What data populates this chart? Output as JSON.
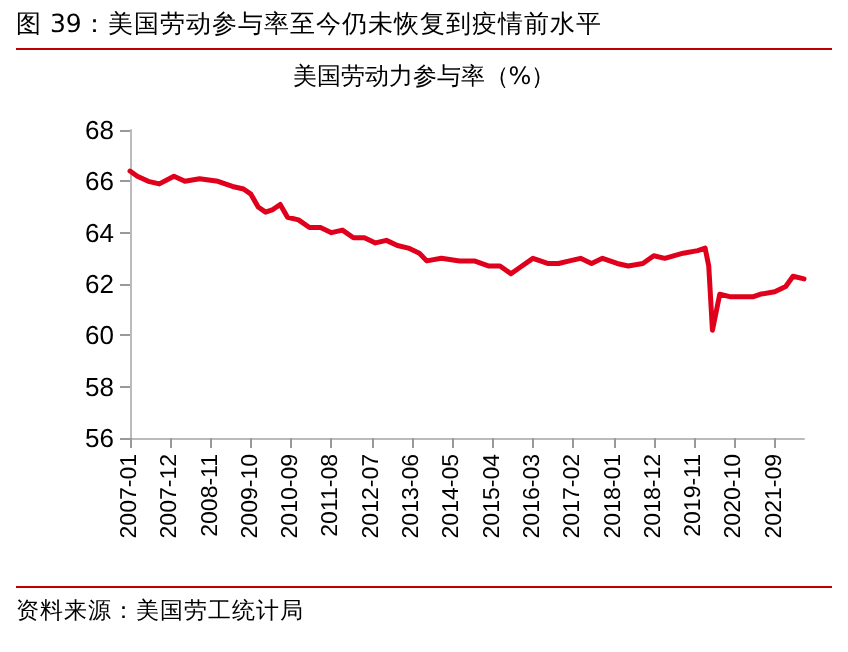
{
  "chart_data": {
    "type": "line",
    "title": "图 39：美国劳动参与率至今仍未恢复到疫情前水平",
    "subtitle": "美国劳动力参与率（%）",
    "annotations": [
      "资料来源：美国劳工统计局"
    ],
    "x": [
      "2007-01",
      "2007-03",
      "2007-06",
      "2007-09",
      "2008-01",
      "2008-04",
      "2008-08",
      "2009-01",
      "2009-05",
      "2009-08",
      "2009-10",
      "2009-12",
      "2010-02",
      "2010-04",
      "2010-06",
      "2010-08",
      "2010-11",
      "2011-02",
      "2011-05",
      "2011-08",
      "2011-11",
      "2012-02",
      "2012-05",
      "2012-08",
      "2012-11",
      "2013-02",
      "2013-05",
      "2013-08",
      "2013-10",
      "2014-02",
      "2014-07",
      "2014-11",
      "2015-03",
      "2015-06",
      "2015-09",
      "2015-12",
      "2016-03",
      "2016-07",
      "2016-10",
      "2017-01",
      "2017-04",
      "2017-07",
      "2017-10",
      "2018-02",
      "2018-05",
      "2018-09",
      "2018-12",
      "2019-03",
      "2019-08",
      "2019-12",
      "2020-02",
      "2020-03",
      "2020-04",
      "2020-06",
      "2020-09",
      "2020-12",
      "2021-03",
      "2021-05",
      "2021-09",
      "2021-12",
      "2022-02",
      "2022-05"
    ],
    "series": [
      {
        "color": "#e0001b",
        "values": [
          66.4,
          66.2,
          66.0,
          65.9,
          66.2,
          66.0,
          66.1,
          66.0,
          65.8,
          65.7,
          65.5,
          65.0,
          64.8,
          64.9,
          65.1,
          64.6,
          64.5,
          64.2,
          64.2,
          64.0,
          64.1,
          63.8,
          63.8,
          63.6,
          63.7,
          63.5,
          63.4,
          63.2,
          62.9,
          63.0,
          62.9,
          62.9,
          62.7,
          62.7,
          62.4,
          62.7,
          63.0,
          62.8,
          62.8,
          62.9,
          63.0,
          62.8,
          63.0,
          62.8,
          62.7,
          62.8,
          63.1,
          63.0,
          63.2,
          63.3,
          63.4,
          62.7,
          60.2,
          61.6,
          61.5,
          61.5,
          61.5,
          61.6,
          61.7,
          61.9,
          62.3,
          62.2
        ]
      }
    ],
    "xlim": [
      "2007-01",
      "2022-05"
    ],
    "xticks": [
      "2007-01",
      "2007-12",
      "2008-11",
      "2009-10",
      "2010-09",
      "2011-08",
      "2012-07",
      "2013-06",
      "2014-05",
      "2015-04",
      "2016-03",
      "2017-02",
      "2018-01",
      "2018-12",
      "2019-11",
      "2020-10",
      "2021-09"
    ],
    "ylim": [
      56,
      68
    ],
    "yticks": [
      56,
      58,
      60,
      62,
      64,
      66,
      68
    ],
    "grid": false,
    "marker": "none",
    "line_style": "solid"
  }
}
